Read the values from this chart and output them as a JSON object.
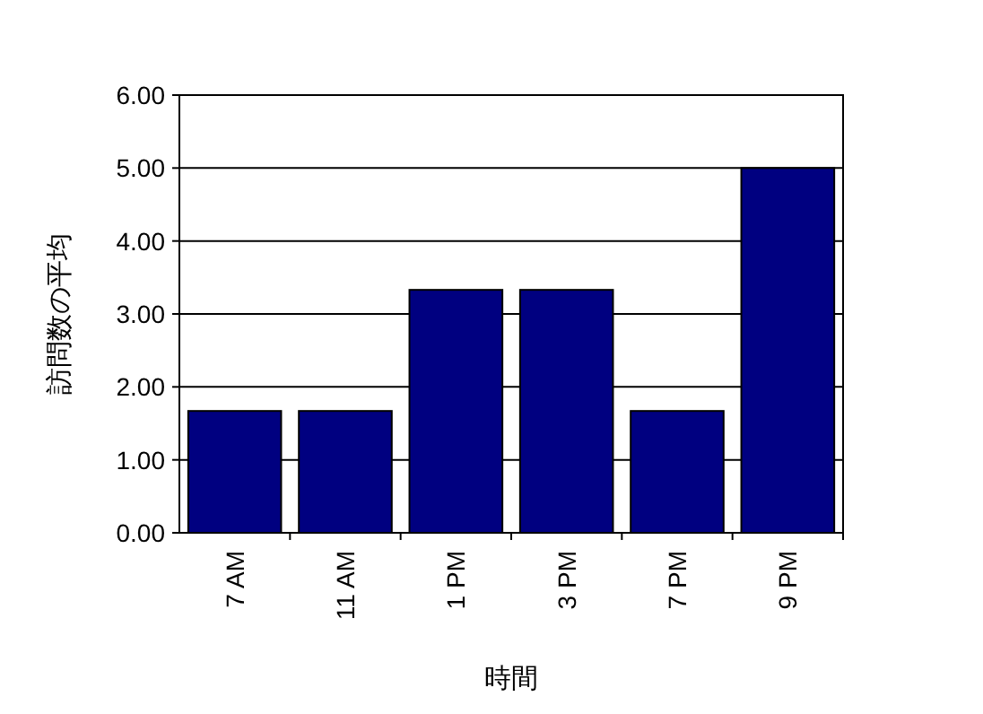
{
  "chart_data": {
    "type": "bar",
    "xlabel": "時間",
    "ylabel": "訪問数の平均",
    "categories": [
      "7 AM",
      "11 AM",
      "1 PM",
      "3 PM",
      "7 PM",
      "9 PM"
    ],
    "values": [
      1.67,
      1.67,
      3.33,
      3.33,
      1.67,
      5.0
    ],
    "color": "#000080",
    "ylim": [
      0,
      6
    ],
    "yticks": [
      {
        "value": 0,
        "label": "0.00"
      },
      {
        "value": 1,
        "label": "1.00"
      },
      {
        "value": 2,
        "label": "2.00"
      },
      {
        "value": 3,
        "label": "3.00"
      },
      {
        "value": 4,
        "label": "4.00"
      },
      {
        "value": 5,
        "label": "5.00"
      },
      {
        "value": 6,
        "label": "6.00"
      }
    ],
    "grid": "y"
  }
}
